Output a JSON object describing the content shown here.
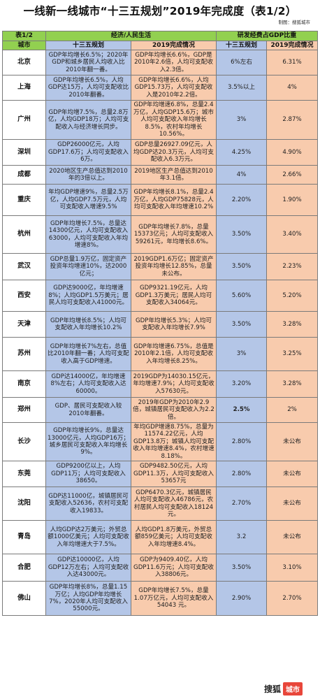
{
  "title": "一线新一线城市“十三五规划”2019年完成度（表1/2）",
  "credit": "制图：搜狐城市",
  "header": {
    "table_label": "表1/2",
    "group_econ": "经济/人民生活",
    "group_rd": "研发经费占GDP比重",
    "col_city": "城市",
    "col_plan": "十三五规划",
    "col_done": "2019完成情况",
    "col_rd_plan": "十三五规划",
    "col_rd_done": "2019完成情况"
  },
  "rows": [
    {
      "city": "北京",
      "plan": "GDP年均增长6.5%；2020年GDP和城乡居民人均收入比2010年翻一番。",
      "done": "GDP年均增长6.6%，GDP是2010年2.6倍，人均可支配收入2.3倍。",
      "rd_plan": "6%左右",
      "rd_done": "6.31%"
    },
    {
      "city": "上海",
      "plan": "GDP年均增长6.5%，人均GDP达15万，人均可支配收比2010年翻番。",
      "done": "GDP年均增长6.6%，人均GDP15.73万，人均可支配收入是2010年2.2倍。",
      "rd_plan": "3.5%以上",
      "rd_done": "4%"
    },
    {
      "city": "广州",
      "plan": "GDP年均增7.5%，总量2.8万亿，人均GDP18万；人均可支配收入与经济增长同步。",
      "done": "GDP年均增速6.8%，总量2.4万亿，人均GDP15.6万；城市人均可支配收入年均增长8.5%，农村年均增长10.56%。",
      "rd_plan": "3%",
      "rd_done": "2.87%"
    },
    {
      "city": "深圳",
      "plan": "GDP26000亿元，人均GDP17.6万；人均可支配收入6万。",
      "done": "GDP总量26927.09亿元，人均GDP达20.3万元，人均可支配收入6.3万元。",
      "rd_plan": "4.25%",
      "rd_done": "4.90%"
    },
    {
      "city": "成都",
      "plan": "2020地区生产总值达到2010年的3倍以上。",
      "done": "2019地区生产总值达到2010年3.1倍。",
      "rd_plan": "4%",
      "rd_done": "2.66%"
    },
    {
      "city": "重庆",
      "plan": "年均GDP增速9%，总量2.5万亿，人均GDP7.5万元，人均可支配收入增速9.5%",
      "done": "GDP年均增长8.1%，总量2.4万亿，人均GDP75828元，人均可支配收入年均增速10.2%",
      "rd_plan": "2.20%",
      "rd_done": "1.90%"
    },
    {
      "city": "杭州",
      "plan": "GDP年均增长7.5%，总量达14300亿元，人均可支配收入63000，人均可支配收入年均增速8%。",
      "done": "GDP年均增长7.8%，总量15373亿元；人均可支配收入59261元，年均增长8.6%。",
      "rd_plan": "3.50%",
      "rd_done": "3.40%"
    },
    {
      "city": "武汉",
      "plan": "GDP总量1.9万亿，固定资产投资年均增速10%，达2000亿元；",
      "done": "2019GDP1.6万亿；固定资产投资年均增长12.85%，总量未公布。",
      "rd_plan": "3.50%",
      "rd_done": "2.23%"
    },
    {
      "city": "西安",
      "plan": "GDP达9000亿，年均增速8%；人均GDP1.5万美元；居民人均可支配收入41000元。",
      "done": "GDP9321.19亿元，人均GDP1.3万美元；居民人均可支配收入34064元。",
      "rd_plan": "5.60%",
      "rd_done": "5.20%"
    },
    {
      "city": "天津",
      "plan": "GDP年均增长8.5%；人均可支配收入年均增长10.2%",
      "done": "GDP年均增长5.3%；人均可支配收入年均增长7.9%",
      "rd_plan": "3.50%",
      "rd_done": "3.28%"
    },
    {
      "city": "苏州",
      "plan": "GDP年均增长7%左右，总值比2010年翻一番；人均可支配收入高于GDP增速。",
      "done": "GDP年均增速6.75%，总值是2010年2.1倍，人均可支配收入年均增长8.25%。",
      "rd_plan": "3%",
      "rd_done": "3.25%"
    },
    {
      "city": "南京",
      "plan": "GDP达14000亿，年均增速8%左右；人均可支配收入达60000。",
      "done": "2019GDP为14030.15亿元，年均增速7.9%；人均可支配收入57630元。",
      "rd_plan": "3.20%",
      "rd_done": "3.28%"
    },
    {
      "city": "郑州",
      "plan": "GDP、居民可支配收入较2010年翻番。",
      "done": "2019年GDP为2010年2.9倍，城镇居民可支配收入为2.2倍。",
      "rd_plan": "2.5%",
      "rd_done": "2%",
      "rd_plan_bold": true
    },
    {
      "city": "长沙",
      "plan": "GDP年均增长9%，总量达13000亿元，人均GDP16万；城乡居民可支配收入年均增长9%。",
      "done": "年均GDP增速8.75%，总量为11574.22亿元，人均GDP13.8万；城镇人均可支配收入年均增速8.4%，农村增速8.18%。",
      "rd_plan": "2.80%",
      "rd_done": "未公布"
    },
    {
      "city": "东莞",
      "plan": "GDP9200亿以上，人均GDP11万；人均可支配收入38650。",
      "done": "GDP9482.50亿元，人均GDP11.3万，人均可支配收入53657元",
      "rd_plan": "2.80%",
      "rd_done": "未公布"
    },
    {
      "city": "沈阳",
      "plan": "GDP达11000亿，城镇居民可支配收入52636，农村可支配收入19833。",
      "done": "GDP6470.3亿元，城镇居民人均可支配收入46786元，农村居民人均可支配收入18124元。",
      "rd_plan": "2.70%",
      "rd_done": "未公布"
    },
    {
      "city": "青岛",
      "plan": "人均GDP达2万美元；外贸总额1000亿美元；人均可支配收入年均增速大于7.5%。",
      "done": "人均GDP1.8万美元，外贸总额859亿美元；人均可支配收入年均增速8.4%。",
      "rd_plan": "3.2",
      "rd_done": "未公布"
    },
    {
      "city": "合肥",
      "plan": "GDP达10000亿，人均GDP12万左右；人均可支配收入达43000元。",
      "done": "GDP为9409.40亿，人均GDP11.6万元；人均可支配收入38806元。",
      "rd_plan": "3.50%",
      "rd_done": "3.10%"
    },
    {
      "city": "佛山",
      "plan": "GDP年均增长8%，总量1.15万亿；人均GDP年均增长7%，2020年人均可支配收入55000元。",
      "done": "GDP年均增长7.5%，总量1.07万亿元，人均可支配收入 54043 元。",
      "rd_plan": "2.90%",
      "rd_done": "2.70%"
    }
  ],
  "logo": {
    "brand": "搜狐",
    "tag": "城市"
  }
}
